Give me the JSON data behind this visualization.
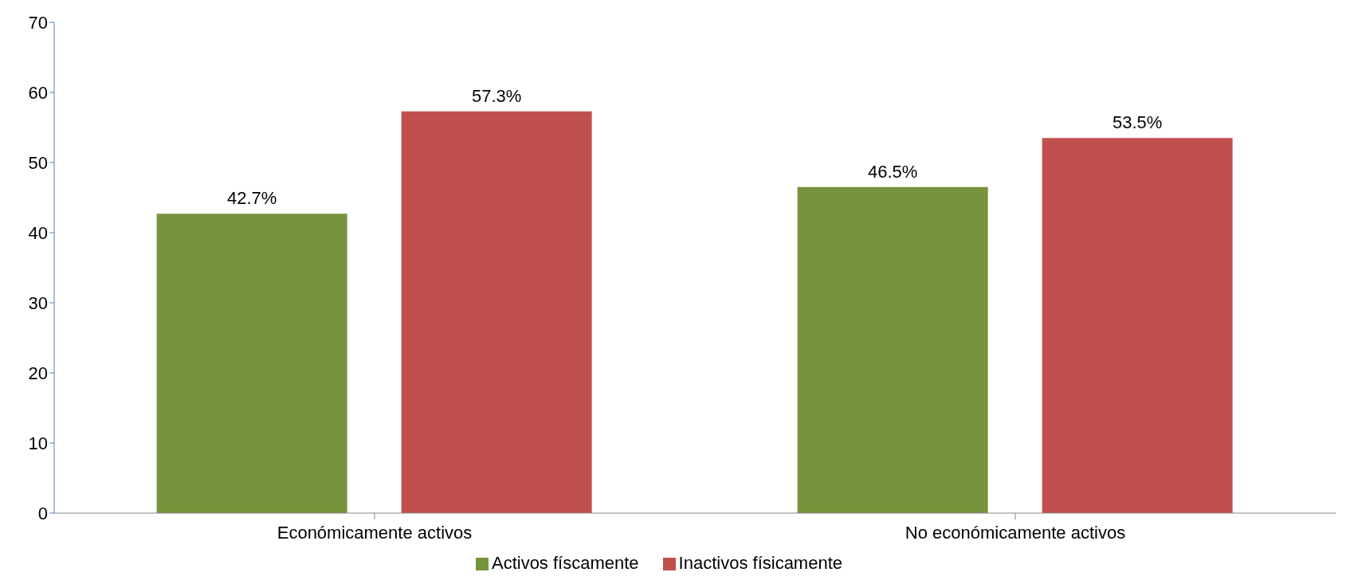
{
  "chart_data": {
    "type": "bar",
    "categories": [
      "Económicamente activos",
      "No económicamente activos"
    ],
    "series": [
      {
        "name": "Activos físcamente",
        "color": "#77933c",
        "values": [
          42.7,
          46.5
        ],
        "value_labels": [
          "42.7%",
          "46.5%"
        ]
      },
      {
        "name": "Inactivos físicamente",
        "color": "#c0504d",
        "values": [
          57.3,
          53.5
        ],
        "value_labels": [
          "57.3%",
          "53.5%"
        ]
      }
    ],
    "ylim": [
      0,
      70
    ],
    "yticks": [
      0,
      10,
      20,
      30,
      40,
      50,
      60,
      70
    ],
    "grid": false,
    "legend": "bottom"
  }
}
